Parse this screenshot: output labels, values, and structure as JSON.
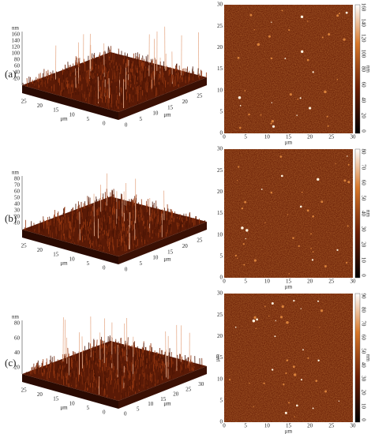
{
  "panels": [
    {
      "label": "(a)",
      "surface": {
        "z_unit": "nm",
        "z_ticks": [
          "160",
          "140",
          "120",
          "100",
          "80",
          "60",
          "40",
          "20"
        ],
        "left_ticks": [
          "25",
          "20",
          "15",
          "10",
          "5",
          "0"
        ],
        "left_unit": "μm",
        "right_ticks": [
          "0",
          "5",
          "10",
          "15",
          "20",
          "25"
        ],
        "right_unit": "μm"
      },
      "map": {
        "x_ticks": [
          "0",
          "5",
          "10",
          "15",
          "20",
          "25",
          "30"
        ],
        "x_unit": "μm",
        "y_ticks": [
          "0",
          "5",
          "10",
          "15",
          "20",
          "25",
          "30"
        ],
        "colorbar_ticks": [
          "160",
          "140",
          "120",
          "100",
          "80",
          "60",
          "40",
          "20",
          "0"
        ],
        "colorbar_unit": "nm"
      }
    },
    {
      "label": "(b)",
      "surface": {
        "z_unit": "nm",
        "z_ticks": [
          "80",
          "70",
          "60",
          "50",
          "40",
          "30",
          "20",
          "10"
        ],
        "left_ticks": [
          "25",
          "20",
          "15",
          "10",
          "5",
          "0"
        ],
        "left_unit": "μm",
        "right_ticks": [
          "0",
          "5",
          "10",
          "15",
          "20",
          "25"
        ],
        "right_unit": "μm"
      },
      "map": {
        "x_ticks": [
          "0",
          "5",
          "10",
          "15",
          "20",
          "25",
          "30"
        ],
        "x_unit": "μm",
        "y_ticks": [
          "0",
          "5",
          "10",
          "15",
          "20",
          "25",
          "30"
        ],
        "colorbar_ticks": [
          "80",
          "70",
          "60",
          "50",
          "40",
          "30",
          "20",
          "10",
          "0"
        ],
        "colorbar_unit": "nm"
      }
    },
    {
      "label": "(c)",
      "surface": {
        "z_unit": "nm",
        "z_ticks": [
          "80",
          "60",
          "40",
          "20"
        ],
        "left_ticks": [
          "25",
          "20",
          "15",
          "10",
          "5",
          "0"
        ],
        "left_unit": "μm",
        "right_ticks": [
          "0",
          "5",
          "10",
          "15",
          "20",
          "25",
          "30"
        ],
        "right_unit": "μm"
      },
      "map": {
        "x_ticks": [
          "0",
          "5",
          "10",
          "15",
          "20",
          "25",
          "30"
        ],
        "x_unit": "μm",
        "y_ticks": [
          "0",
          "5",
          "10",
          "15",
          "20",
          "25",
          "30"
        ],
        "y_unit": "μm",
        "colorbar_ticks": [
          "90",
          "80",
          "70",
          "60",
          "50",
          "40",
          "30",
          "20",
          "10",
          "0"
        ],
        "colorbar_unit": "nm"
      }
    }
  ]
}
